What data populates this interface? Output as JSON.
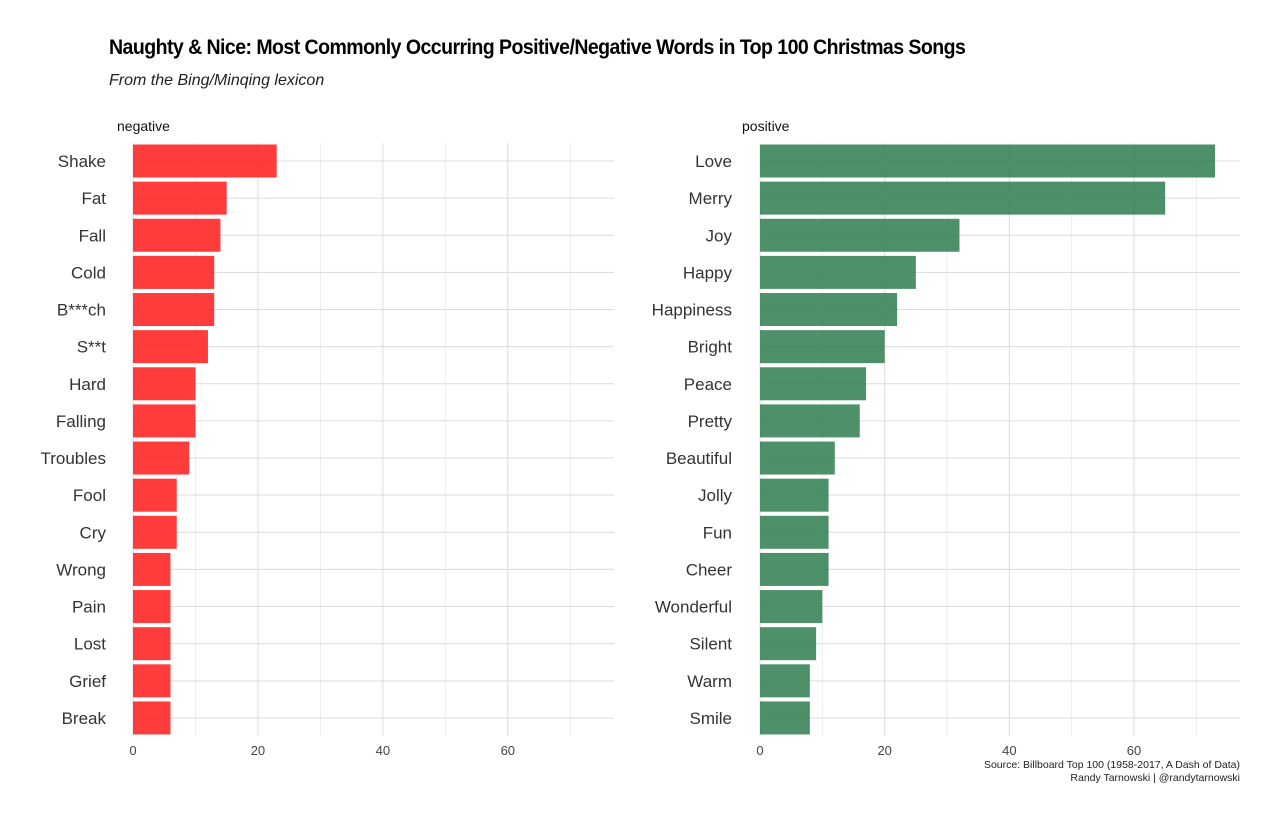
{
  "title": "Naughty & Nice: Most Commonly Occurring Positive/Negative Words in Top 100 Christmas Songs",
  "subtitle": "From the Bing/Minqing lexicon",
  "caption": {
    "line1": "Source: Billboard Top 100 (1958-2017, A Dash of Data)",
    "line2": "Randy Tarnowski | @randytarnowski"
  },
  "colors": {
    "negative": "#ff1a1a",
    "positive": "#2e7d4f"
  },
  "chart_data": [
    {
      "type": "bar",
      "orientation": "horizontal",
      "facet": "negative",
      "categories": [
        "Shake",
        "Fat",
        "Fall",
        "Cold",
        "B***ch",
        "S**t",
        "Hard",
        "Falling",
        "Troubles",
        "Fool",
        "Cry",
        "Wrong",
        "Pain",
        "Lost",
        "Grief",
        "Break"
      ],
      "values": [
        23,
        15,
        14,
        13,
        13,
        12,
        10,
        10,
        9,
        7,
        7,
        6,
        6,
        6,
        6,
        6
      ],
      "xlim": [
        0,
        77
      ],
      "xticks": [
        0,
        20,
        40,
        60
      ],
      "grid": true
    },
    {
      "type": "bar",
      "orientation": "horizontal",
      "facet": "positive",
      "categories": [
        "Love",
        "Merry",
        "Joy",
        "Happy",
        "Happiness",
        "Bright",
        "Peace",
        "Pretty",
        "Beautiful",
        "Jolly",
        "Fun",
        "Cheer",
        "Wonderful",
        "Silent",
        "Warm",
        "Smile"
      ],
      "values": [
        73,
        65,
        32,
        25,
        22,
        20,
        17,
        16,
        12,
        11,
        11,
        11,
        10,
        9,
        8,
        8
      ],
      "xlim": [
        0,
        77
      ],
      "xticks": [
        0,
        20,
        40,
        60
      ],
      "grid": true
    }
  ]
}
